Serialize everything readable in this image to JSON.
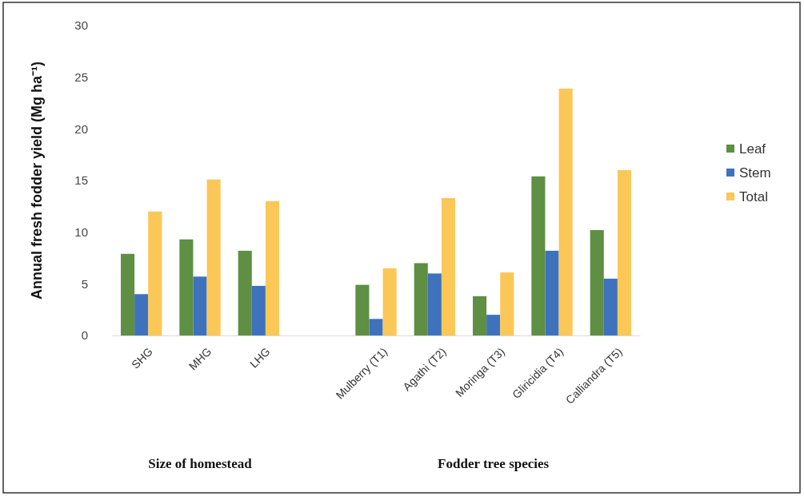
{
  "chart_data": {
    "type": "bar",
    "ylabel": "Annual fresh fodder yield (Mg ha⁻¹)",
    "categories": [
      "SHG",
      "MHG",
      "LHG",
      null,
      "Mulberry (T1)",
      "Agathi (T2)",
      "Moringa (T3)",
      "Gliricidia (T4)",
      "Calliandra (T5)"
    ],
    "series": [
      {
        "name": "Leaf",
        "color": "#5e8f43",
        "values": [
          7.9,
          9.3,
          8.2,
          null,
          4.9,
          7.0,
          3.8,
          15.4,
          10.2
        ]
      },
      {
        "name": "Stem",
        "color": "#3f72bd",
        "values": [
          4.0,
          5.7,
          4.8,
          null,
          1.6,
          6.0,
          2.0,
          8.2,
          5.5
        ]
      },
      {
        "name": "Total",
        "color": "#fbc757",
        "values": [
          12.0,
          15.1,
          13.0,
          null,
          6.5,
          13.3,
          6.1,
          23.9,
          16.0
        ]
      }
    ],
    "annotations": [
      "Size of homestead",
      "Fodder tree species"
    ],
    "ylim": [
      0,
      30
    ],
    "yticks": [
      0,
      5,
      10,
      15,
      20,
      25,
      30
    ],
    "grid": false,
    "legend": "right"
  }
}
